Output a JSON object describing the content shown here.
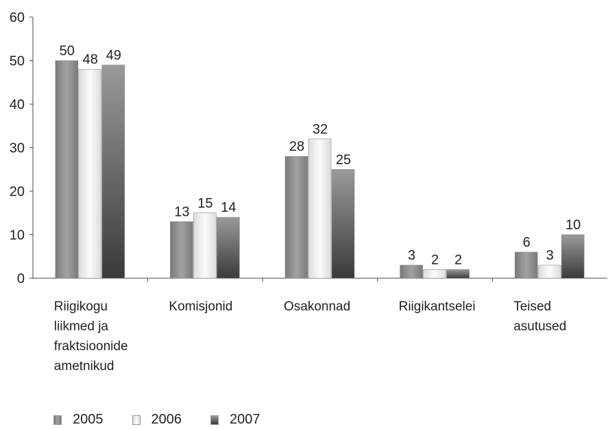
{
  "chart_data": {
    "type": "bar",
    "categories": [
      "Riigikogu\nliikmed ja\nfraktsioonide\nametnikud",
      "Komisjonid",
      "Osakonnad",
      "Riigikantselei",
      "Teised\nasutused"
    ],
    "series": [
      {
        "name": "2005",
        "values": [
          50,
          13,
          28,
          3,
          6
        ],
        "color": "#8c8c8c"
      },
      {
        "name": "2006",
        "values": [
          48,
          15,
          32,
          2,
          3
        ],
        "color": "#efefef"
      },
      {
        "name": "2007",
        "values": [
          49,
          14,
          25,
          2,
          10
        ],
        "color": "#5a5a5a"
      }
    ],
    "ylim": [
      0,
      60
    ],
    "yticks": [
      "0",
      "10",
      "20",
      "30",
      "40",
      "50",
      "60"
    ],
    "grid": false,
    "legend": "bottom-left"
  }
}
